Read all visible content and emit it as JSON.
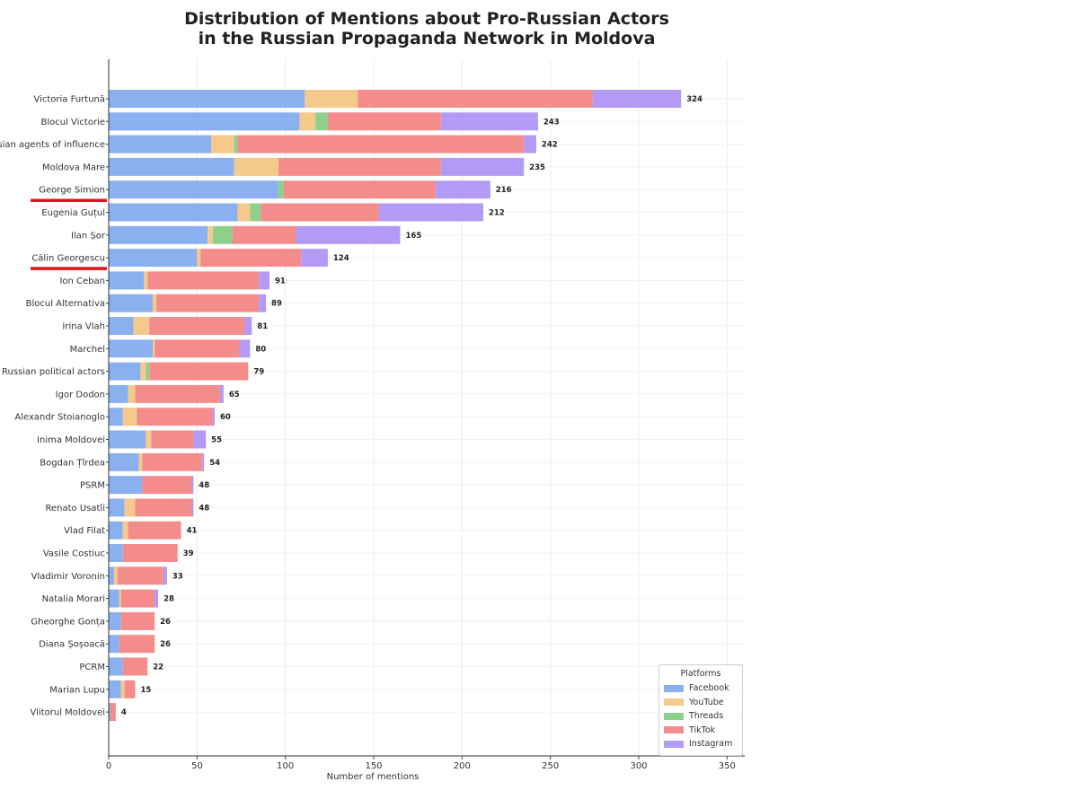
{
  "chart_data": {
    "type": "bar",
    "orientation": "horizontal",
    "stacked": true,
    "title_line1": "Distribution of Mentions about Pro-Russian Actors",
    "title_line2": "in the Russian Propaganda Network in Moldova",
    "xlabel": "Number of mentions",
    "ylabel": "",
    "xlim": [
      0,
      360
    ],
    "xticks": [
      0,
      50,
      100,
      150,
      200,
      250,
      300,
      350
    ],
    "grid": true,
    "legend_title": "Platforms",
    "legend_position": "bottom-right",
    "categories": [
      "Victoria Furtună",
      "Blocul Victorie",
      "Russian agents of influence",
      "Moldova Mare",
      "George Simion",
      "Eugenia Guțul",
      "Ilan Șor",
      "Călin Georgescu",
      "Ion Ceban",
      "Blocul Alternativa",
      "Irina Vlah",
      "Marchel",
      "Russian political actors",
      "Igor Dodon",
      "Alexandr Stoianoglo",
      "Inima Moldovei",
      "Bogdan Țîrdea",
      "PSRM",
      "Renato Usatîi",
      "Vlad Filat",
      "Vasile Costiuc",
      "Vladimir Voronin",
      "Natalia Morari",
      "Gheorghe Gonța",
      "Diana Șoșoacă",
      "PCRM",
      "Marian Lupu",
      "Viitorul Moldovei"
    ],
    "totals": [
      324,
      243,
      242,
      235,
      216,
      212,
      165,
      124,
      91,
      89,
      81,
      80,
      79,
      65,
      60,
      55,
      54,
      48,
      48,
      41,
      39,
      33,
      28,
      26,
      26,
      22,
      15,
      4
    ],
    "series": [
      {
        "name": "Facebook",
        "color": "#8ab0f0",
        "values": [
          111,
          108,
          58,
          71,
          96,
          73,
          56,
          50,
          20,
          25,
          14,
          25,
          18,
          11,
          8,
          21,
          17,
          19,
          9,
          8,
          8,
          3,
          6,
          7,
          6,
          8,
          7,
          1
        ]
      },
      {
        "name": "YouTube",
        "color": "#f5c98a",
        "values": [
          30,
          9,
          13,
          25,
          0,
          7,
          3,
          2,
          2,
          2,
          9,
          1,
          3,
          4,
          8,
          3,
          2,
          0,
          6,
          3,
          0,
          2,
          1,
          0,
          0,
          0,
          2,
          0
        ]
      },
      {
        "name": "Threads",
        "color": "#8ecf8a",
        "values": [
          0,
          7,
          2,
          0,
          3,
          6,
          11,
          0,
          0,
          0,
          0,
          0,
          2,
          0,
          0,
          0,
          0,
          0,
          0,
          0,
          0,
          0,
          0,
          0,
          0,
          0,
          0,
          0
        ]
      },
      {
        "name": "TikTok",
        "color": "#f58c8c",
        "values": [
          133,
          64,
          162,
          92,
          86,
          67,
          36,
          57,
          63,
          58,
          54,
          48,
          56,
          48,
          43,
          24,
          34,
          28,
          32,
          30,
          31,
          26,
          19,
          19,
          20,
          14,
          6,
          3
        ]
      },
      {
        "name": "Instagram",
        "color": "#b39af5",
        "values": [
          50,
          55,
          7,
          47,
          31,
          59,
          59,
          15,
          6,
          4,
          4,
          6,
          0,
          2,
          1,
          7,
          1,
          1,
          1,
          0,
          0,
          2,
          2,
          0,
          0,
          0,
          0,
          0
        ]
      }
    ]
  },
  "annotations": {
    "underlined": [
      "George Simion",
      "Călin Georgescu"
    ],
    "underline_color": "#e0141c"
  }
}
